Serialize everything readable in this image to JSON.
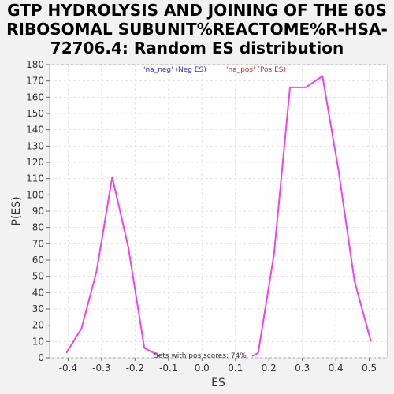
{
  "chart_data": {
    "type": "line",
    "title": [
      "GTP HYDROLYSIS AND JOINING OF THE 60S",
      "RIBOSOMAL SUBUNIT%REACTOME%R-HSA-",
      "72706.4: Random ES distribution"
    ],
    "xlabel": "ES",
    "ylabel": "P(ES)",
    "xlim": [
      -0.455,
      0.555
    ],
    "ylim": [
      0,
      180
    ],
    "xticks": [
      "-0.4",
      "-0.3",
      "-0.2",
      "-0.1",
      "0.0",
      "0.1",
      "0.2",
      "0.3",
      "0.4",
      "0.5"
    ],
    "xtick_values": [
      -0.4,
      -0.3,
      -0.2,
      -0.1,
      0.0,
      0.1,
      0.2,
      0.3,
      0.4,
      0.5
    ],
    "yticks": [
      "0",
      "10",
      "20",
      "30",
      "40",
      "50",
      "60",
      "70",
      "80",
      "90",
      "100",
      "110",
      "120",
      "130",
      "140",
      "150",
      "160",
      "170",
      "180"
    ],
    "ytick_values": [
      0,
      10,
      20,
      30,
      40,
      50,
      60,
      70,
      80,
      90,
      100,
      110,
      120,
      130,
      140,
      150,
      160,
      170,
      180
    ],
    "grid": true,
    "legend": [
      {
        "label": "'na_neg' (Neg ES)",
        "color": "#3333cc"
      },
      {
        "label": "'na_pos' (Pos ES)",
        "color": "#cc3333"
      }
    ],
    "series": [
      {
        "color": "#ee44ee",
        "x": [
          -0.405,
          -0.36,
          -0.315,
          -0.268,
          -0.22,
          -0.172,
          -0.125
        ],
        "y": [
          3,
          18,
          53,
          111,
          68,
          6,
          1
        ]
      },
      {
        "color": "#ee44ee",
        "x": [
          0.15,
          0.168,
          0.215,
          0.263,
          0.31,
          0.36,
          0.408,
          0.456,
          0.505
        ],
        "y": [
          1,
          3,
          63,
          166,
          166,
          173,
          115,
          47,
          10
        ]
      }
    ],
    "annotation": "Sets with pos scores: 74%"
  }
}
